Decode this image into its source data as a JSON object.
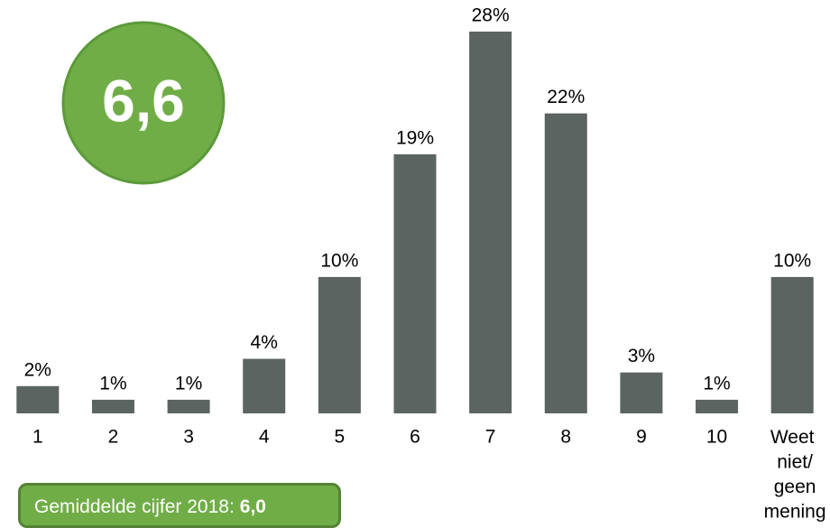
{
  "chart_data": {
    "type": "bar",
    "score": "6,6",
    "average_label": "Gemiddelde cijfer 2018:",
    "average_value": "6,0",
    "categories": [
      "1",
      "2",
      "3",
      "4",
      "5",
      "6",
      "7",
      "8",
      "9",
      "10",
      "Weet niet/ geen mening"
    ],
    "values": [
      2,
      1,
      1,
      4,
      10,
      19,
      28,
      22,
      3,
      1,
      10
    ],
    "value_labels": [
      "2%",
      "1%",
      "1%",
      "4%",
      "10%",
      "19%",
      "28%",
      "22%",
      "3%",
      "1%",
      "10%"
    ],
    "color": "#5b6461"
  }
}
